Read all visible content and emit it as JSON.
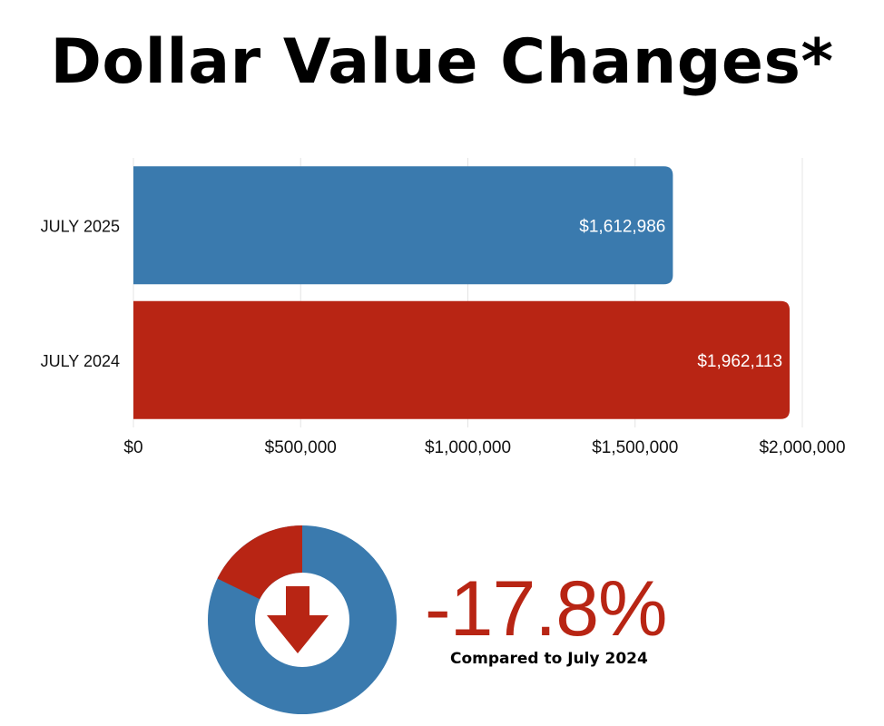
{
  "title": "Dollar Value Changes*",
  "colors": {
    "blue": "#3a7aae",
    "red": "#b82514",
    "grid": "#e4e4e4"
  },
  "chart_data": {
    "type": "bar",
    "orientation": "horizontal",
    "categories": [
      "JULY 2025",
      "JULY 2024"
    ],
    "values": [
      1612986,
      1962113
    ],
    "data_labels": [
      "$1,612,986",
      "$1,962,113"
    ],
    "bar_colors": [
      "#3a7aae",
      "#b82514"
    ],
    "xlim": [
      0,
      2000000
    ],
    "xticks": [
      0,
      500000,
      1000000,
      1500000,
      2000000
    ],
    "xtick_labels": [
      "$0",
      "$500,000",
      "$1,000,000",
      "$1,500,000",
      "$2,000,000"
    ],
    "grid": true
  },
  "summary": {
    "change": "-17.8%",
    "change_fraction": 0.178,
    "caption": "Compared to July 2024",
    "indicator_icon": "down-arrow-icon"
  }
}
